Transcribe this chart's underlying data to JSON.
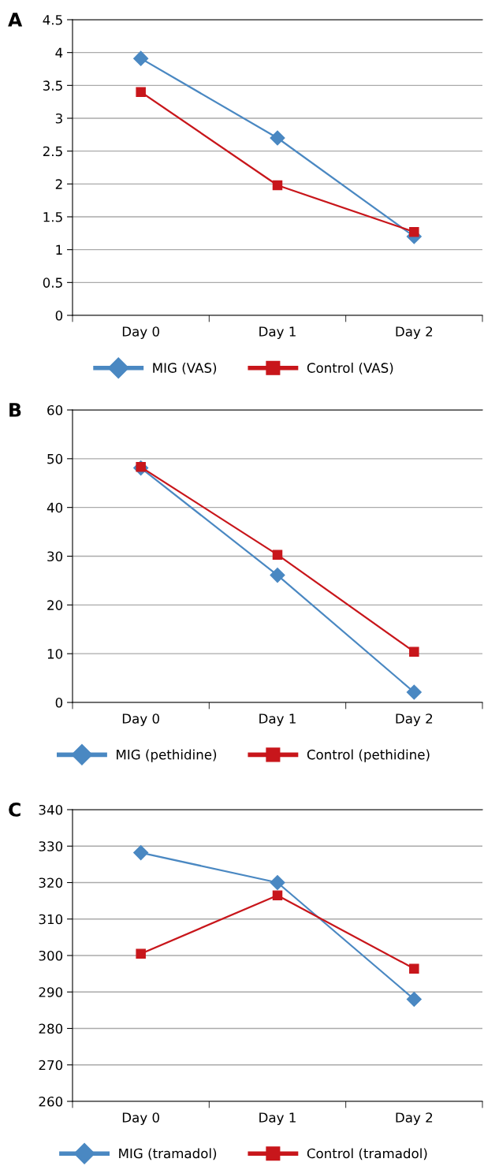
{
  "chart_data": [
    {
      "type": "line",
      "title": "A",
      "categories": [
        "Day 0",
        "Day 1",
        "Day 2"
      ],
      "ylim": [
        0,
        4.5
      ],
      "yticks": [
        0,
        0.5,
        1,
        1.5,
        2,
        2.5,
        3,
        3.5,
        4,
        4.5
      ],
      "grid": "y",
      "legend": "bottom",
      "series": [
        {
          "name": "MIG (VAS)",
          "color": "#4a88c2",
          "marker": "diamond",
          "values": [
            3.91,
            2.7,
            1.2
          ]
        },
        {
          "name": "Control (VAS)",
          "color": "#c8161b",
          "marker": "square",
          "values": [
            3.4,
            1.98,
            1.27
          ]
        }
      ]
    },
    {
      "type": "line",
      "title": "B",
      "categories": [
        "Day 0",
        "Day 1",
        "Day 2"
      ],
      "ylim": [
        0,
        60
      ],
      "yticks": [
        0,
        10,
        20,
        30,
        40,
        50,
        60
      ],
      "grid": "y",
      "legend": "bottom",
      "series": [
        {
          "name": "MIG (pethidine)",
          "color": "#4a88c2",
          "marker": "diamond",
          "values": [
            48.1,
            26.1,
            2.1
          ]
        },
        {
          "name": "Control (pethidine)",
          "color": "#c8161b",
          "marker": "square",
          "values": [
            48.3,
            30.3,
            10.4
          ]
        }
      ]
    },
    {
      "type": "line",
      "title": "C",
      "categories": [
        "Day 0",
        "Day 1",
        "Day 2"
      ],
      "ylim": [
        260,
        340
      ],
      "yticks": [
        260,
        270,
        280,
        290,
        300,
        310,
        320,
        330,
        340
      ],
      "grid": "y",
      "legend": "bottom",
      "series": [
        {
          "name": "MIG (tramadol)",
          "color": "#4a88c2",
          "marker": "diamond",
          "values": [
            328.2,
            320.0,
            288.0
          ]
        },
        {
          "name": "Control (tramadol)",
          "color": "#c8161b",
          "marker": "square",
          "values": [
            300.5,
            316.5,
            296.4
          ]
        }
      ]
    }
  ]
}
